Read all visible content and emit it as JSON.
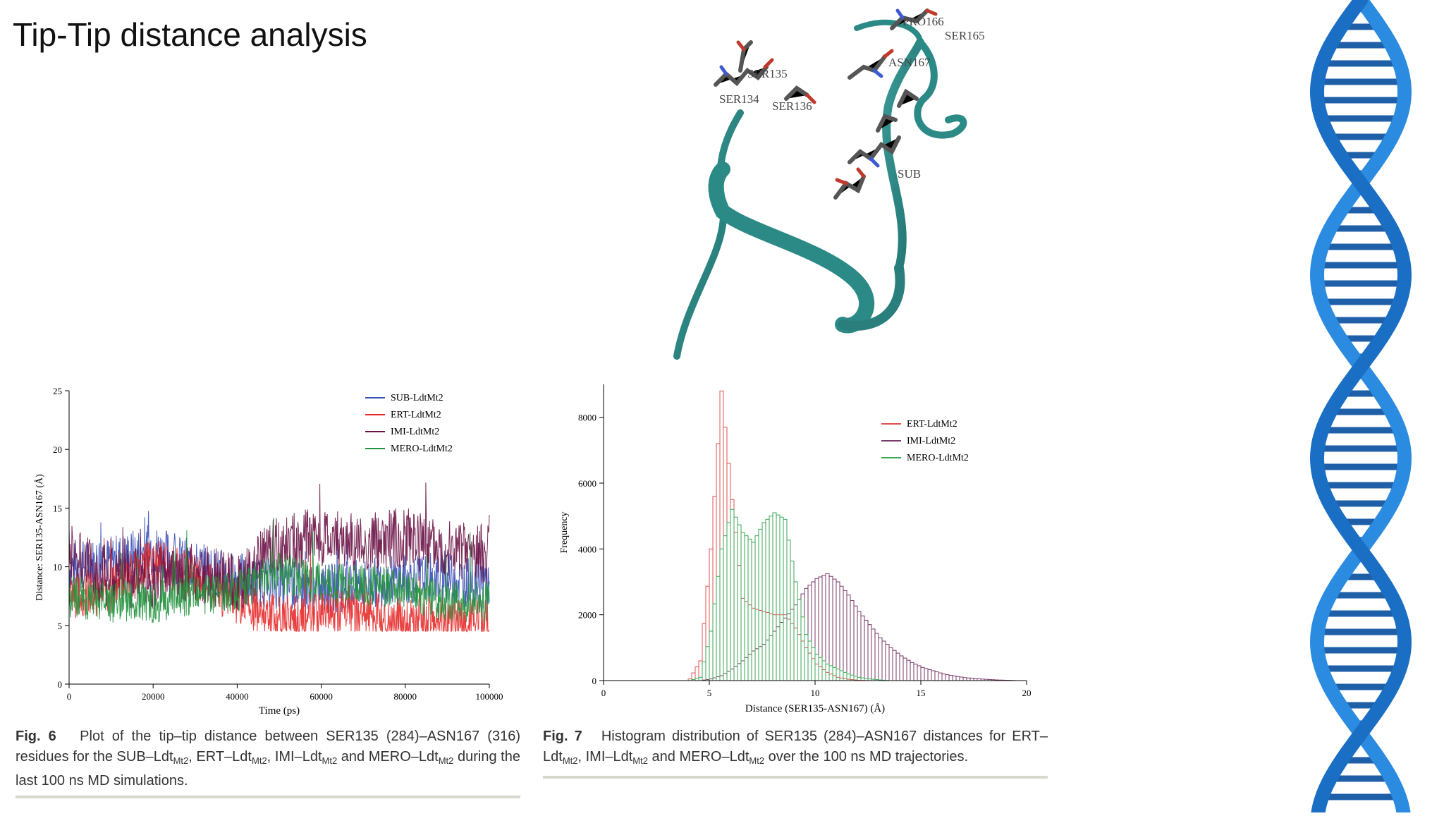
{
  "slide": {
    "title": "Tip-Tip distance analysis"
  },
  "structure": {
    "residue_labels": [
      "PRO166",
      "SER165",
      "ASN167",
      "SER135",
      "SER134",
      "SER136",
      "SUB"
    ]
  },
  "figures": {
    "fig6": {
      "label": "Fig. 6",
      "caption_parts": {
        "a": "Plot of the tip–tip distance between SER135 (284)–ASN167 (316) residues for the SUB–Ldt",
        "b": ", ERT–Ldt",
        "c": ", IMI–Ldt",
        "d": " and MERO–Ldt",
        "e": " during the last 100 ns MD simulations.",
        "sub": "Mt2"
      }
    },
    "fig7": {
      "label": "Fig. 7",
      "caption_parts": {
        "a": "Histogram distribution of SER135 (284)–ASN167 distances for ERT–Ldt",
        "b": ", IMI–Ldt",
        "c": " and MERO–Ldt",
        "d": " over the 100 ns MD trajectories.",
        "sub": "Mt2"
      }
    }
  },
  "chart_data": [
    {
      "type": "line",
      "xlabel": "Time (ps)",
      "ylabel": "Distance: SER135-ASN167 (Å)",
      "xlim": [
        0,
        100000
      ],
      "ylim": [
        0,
        25
      ],
      "xticks": [
        0,
        20000,
        40000,
        60000,
        80000,
        100000
      ],
      "yticks": [
        0,
        5,
        10,
        15,
        20,
        25
      ],
      "legend_position": "top-right",
      "series": [
        {
          "name": "SUB-LdtMt2",
          "color": "#3a4fb5",
          "x": [
            0,
            10000,
            20000,
            30000,
            40000,
            50000,
            60000,
            70000,
            80000,
            90000,
            100000
          ],
          "values": [
            10,
            10.5,
            11.5,
            10,
            9,
            8.5,
            8,
            8.5,
            9,
            9,
            8.5
          ]
        },
        {
          "name": "ERT-LdtMt2",
          "color": "#e62a2a",
          "x": [
            0,
            10000,
            20000,
            30000,
            40000,
            50000,
            60000,
            70000,
            80000,
            90000,
            100000
          ],
          "values": [
            7.5,
            8,
            10.5,
            9,
            7,
            5.5,
            6,
            6,
            5.5,
            5.5,
            5.5
          ]
        },
        {
          "name": "IMI-LdtMt2",
          "color": "#6b1346",
          "x": [
            0,
            10000,
            20000,
            30000,
            40000,
            50000,
            60000,
            70000,
            80000,
            90000,
            100000
          ],
          "values": [
            11,
            9,
            9,
            9.5,
            8.5,
            12,
            12.5,
            12,
            12.5,
            11.5,
            11
          ]
        },
        {
          "name": "MERO-LdtMt2",
          "color": "#22923e",
          "x": [
            0,
            10000,
            20000,
            30000,
            40000,
            50000,
            60000,
            70000,
            80000,
            90000,
            100000
          ],
          "values": [
            7.5,
            7,
            7,
            7.5,
            8,
            9.5,
            8.5,
            8.5,
            8,
            7,
            7
          ]
        }
      ]
    },
    {
      "type": "bar",
      "xlabel": "Distance (SER135-ASN167) (Å)",
      "ylabel": "Frequency",
      "xlim": [
        0,
        20
      ],
      "ylim": [
        0,
        9000
      ],
      "xticks": [
        0,
        5,
        10,
        15,
        20
      ],
      "yticks": [
        0,
        2000,
        4000,
        6000,
        8000
      ],
      "legend_position": "top-right",
      "x": [
        4.0,
        4.5,
        5.0,
        5.5,
        6.0,
        6.5,
        7.0,
        7.5,
        8.0,
        8.5,
        9.0,
        9.5,
        10.0,
        10.5,
        11.0,
        11.5,
        12.0,
        12.5,
        13.0,
        13.5,
        14.0,
        14.5,
        15.0,
        15.5,
        16.0,
        16.5,
        17.0,
        17.5,
        18.0,
        18.5,
        19.0
      ],
      "series": [
        {
          "name": "ERT-LdtMt2",
          "color": "#e05050",
          "values": [
            50,
            600,
            4000,
            8800,
            5500,
            2500,
            2200,
            2100,
            2000,
            2000,
            1600,
            1000,
            500,
            250,
            100,
            40,
            10,
            0,
            0,
            0,
            0,
            0,
            0,
            0,
            0,
            0,
            0,
            0,
            0,
            0,
            0
          ]
        },
        {
          "name": "IMI-LdtMt2",
          "color": "#7a3a6a",
          "values": [
            0,
            0,
            50,
            150,
            350,
            600,
            900,
            1100,
            1500,
            1900,
            2300,
            2800,
            3100,
            3250,
            3000,
            2600,
            2100,
            1700,
            1300,
            1000,
            750,
            550,
            400,
            300,
            200,
            140,
            90,
            60,
            40,
            20,
            10
          ]
        },
        {
          "name": "MERO-LdtMt2",
          "color": "#3aa655",
          "values": [
            0,
            100,
            1500,
            4000,
            5200,
            4500,
            4200,
            4800,
            5100,
            4900,
            3000,
            1400,
            800,
            500,
            350,
            200,
            100,
            50,
            20,
            0,
            0,
            0,
            0,
            0,
            0,
            0,
            0,
            0,
            0,
            0,
            0
          ]
        }
      ]
    }
  ]
}
